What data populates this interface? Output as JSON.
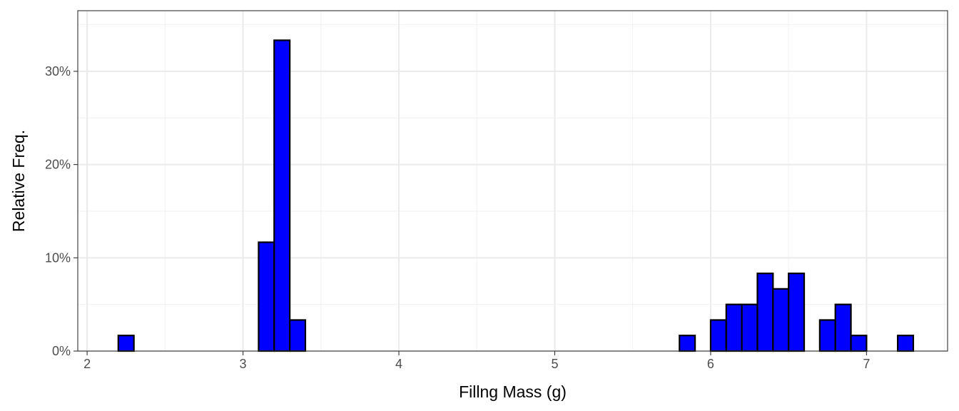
{
  "chart_data": {
    "type": "bar",
    "subtype": "histogram",
    "title": "",
    "xlabel": "Fillng Mass (g)",
    "ylabel": "Relative Freq.",
    "xlim": [
      1.94,
      7.52
    ],
    "ylim": [
      0,
      0.365
    ],
    "bin_width": 0.1,
    "x_ticks": [
      {
        "value": 2,
        "label": "2"
      },
      {
        "value": 3,
        "label": "3"
      },
      {
        "value": 4,
        "label": "4"
      },
      {
        "value": 5,
        "label": "5"
      },
      {
        "value": 6,
        "label": "6"
      },
      {
        "value": 7,
        "label": "7"
      }
    ],
    "y_ticks": [
      {
        "value": 0,
        "label": "0%"
      },
      {
        "value": 0.1,
        "label": "10%"
      },
      {
        "value": 0.2,
        "label": "20%"
      },
      {
        "value": 0.3,
        "label": "30%"
      }
    ],
    "bins": [
      {
        "x0": 2.2,
        "x1": 2.3,
        "value": 0.0167
      },
      {
        "x0": 3.1,
        "x1": 3.2,
        "value": 0.1167
      },
      {
        "x0": 3.2,
        "x1": 3.3,
        "value": 0.3333
      },
      {
        "x0": 3.3,
        "x1": 3.4,
        "value": 0.0333
      },
      {
        "x0": 5.8,
        "x1": 5.9,
        "value": 0.0167
      },
      {
        "x0": 6.0,
        "x1": 6.1,
        "value": 0.0333
      },
      {
        "x0": 6.1,
        "x1": 6.2,
        "value": 0.05
      },
      {
        "x0": 6.2,
        "x1": 6.3,
        "value": 0.05
      },
      {
        "x0": 6.3,
        "x1": 6.4,
        "value": 0.0833
      },
      {
        "x0": 6.4,
        "x1": 6.5,
        "value": 0.0667
      },
      {
        "x0": 6.5,
        "x1": 6.6,
        "value": 0.0833
      },
      {
        "x0": 6.7,
        "x1": 6.8,
        "value": 0.0333
      },
      {
        "x0": 6.8,
        "x1": 6.9,
        "value": 0.05
      },
      {
        "x0": 6.9,
        "x1": 7.0,
        "value": 0.0167
      },
      {
        "x0": 7.2,
        "x1": 7.3,
        "value": 0.0167
      }
    ],
    "colors": {
      "bar_fill": "#0000ff",
      "bar_stroke": "#000000",
      "grid_major": "#ebebeb",
      "grid_minor": "#f2f2f2",
      "panel_border": "#333333",
      "background": "#ffffff"
    },
    "grid": true,
    "legend": "none"
  }
}
